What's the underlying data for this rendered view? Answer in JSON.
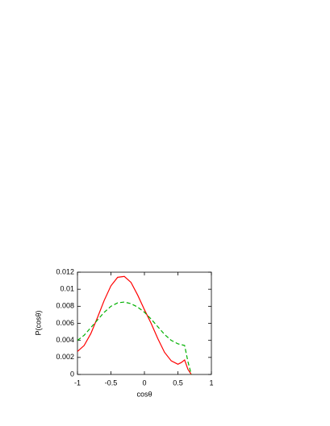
{
  "chart_data": {
    "type": "line",
    "xlabel": "cosθ",
    "ylabel": "P(cosθ)",
    "x": [
      -1,
      -0.9,
      -0.8,
      -0.7,
      -0.6,
      -0.5,
      -0.4,
      -0.3,
      -0.2,
      -0.1,
      0,
      0.1,
      0.2,
      0.3,
      0.4,
      0.5,
      0.55,
      0.6,
      0.65,
      0.7
    ],
    "series": [
      {
        "color": "#ff0000",
        "dashed": false,
        "values": [
          0.0027,
          0.0034,
          0.0048,
          0.0067,
          0.0087,
          0.0104,
          0.0114,
          0.0115,
          0.0108,
          0.0093,
          0.0076,
          0.006,
          0.0042,
          0.0026,
          0.0016,
          0.0012,
          0.0014,
          0.0017,
          0.0006,
          0
        ]
      },
      {
        "color": "#00b000",
        "dashed": true,
        "values": [
          0.004,
          0.0046,
          0.0055,
          0.0064,
          0.0073,
          0.008,
          0.0084,
          0.0085,
          0.0083,
          0.0079,
          0.0073,
          0.0065,
          0.0056,
          0.0047,
          0.004,
          0.0036,
          0.0035,
          0.0034,
          0.0015,
          0
        ]
      }
    ],
    "xlim": [
      -1,
      1
    ],
    "xticks": [
      -1,
      -0.5,
      0,
      0.5,
      1
    ],
    "ylim": [
      0,
      0.012
    ],
    "yticks": [
      0,
      0.002,
      0.004,
      0.006,
      0.008,
      0.01,
      0.012
    ]
  }
}
